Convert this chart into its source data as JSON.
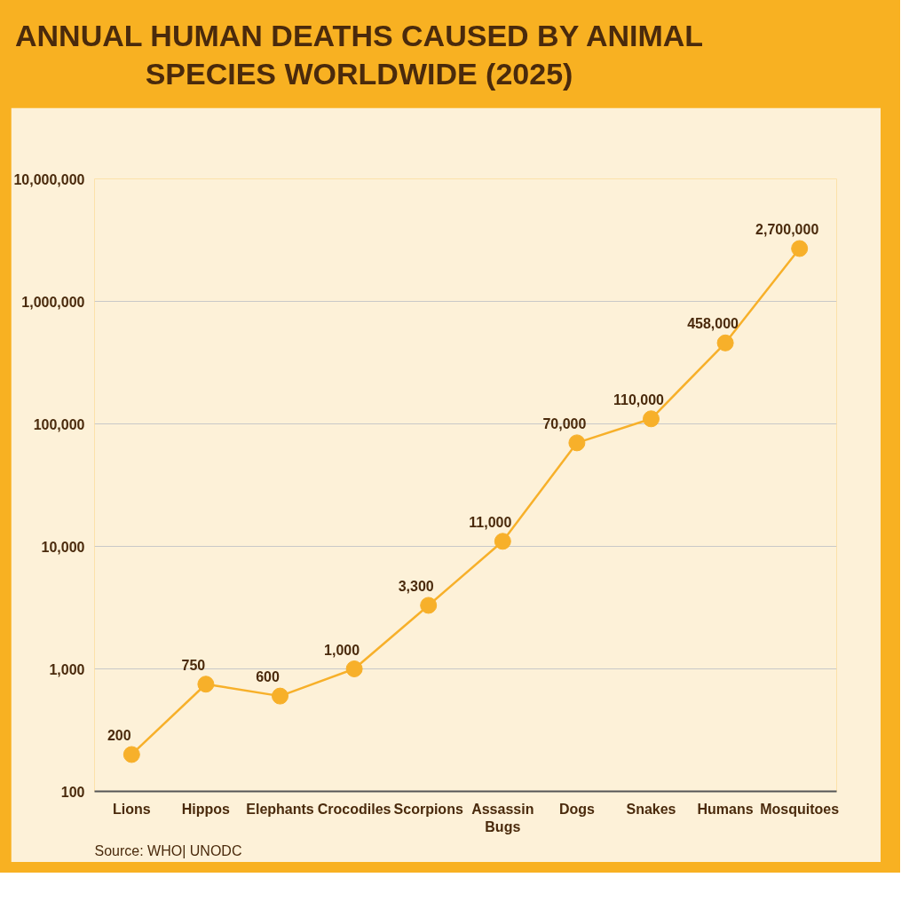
{
  "chart_data": {
    "type": "line",
    "title": "ANNUAL HUMAN DEATHS CAUSED BY ANIMAL SPECIES WORLDWIDE (2025)",
    "categories": [
      "Lions",
      "Hippos",
      "Elephants",
      "Crocodiles",
      "Scorpions",
      "Assassin Bugs",
      "Dogs",
      "Snakes",
      "Humans",
      "Mosquitoes"
    ],
    "series": [
      {
        "color": "#f7b02a",
        "values": [
          200,
          750,
          600,
          1000,
          3300,
          11000,
          70000,
          110000,
          458000,
          2700000
        ],
        "value_labels": [
          "200",
          "750",
          "600",
          "1,000",
          "3,300",
          "11,000",
          "70,000",
          "110,000",
          "458,000",
          "2,700,000"
        ]
      }
    ],
    "log": true,
    "ylim": [
      100,
      10000000
    ],
    "yticks": [
      {
        "value": 100,
        "label": "100"
      },
      {
        "value": 1000,
        "label": "1,000"
      },
      {
        "value": 10000,
        "label": "10,000"
      },
      {
        "value": 100000,
        "label": "100,000"
      },
      {
        "value": 1000000,
        "label": "1,000,000"
      },
      {
        "value": 10000000,
        "label": "10,000,000"
      }
    ],
    "grid": "y",
    "marker": "circle",
    "line_style": "solid",
    "annotations": [
      "Source: WHO| UNODC"
    ]
  }
}
